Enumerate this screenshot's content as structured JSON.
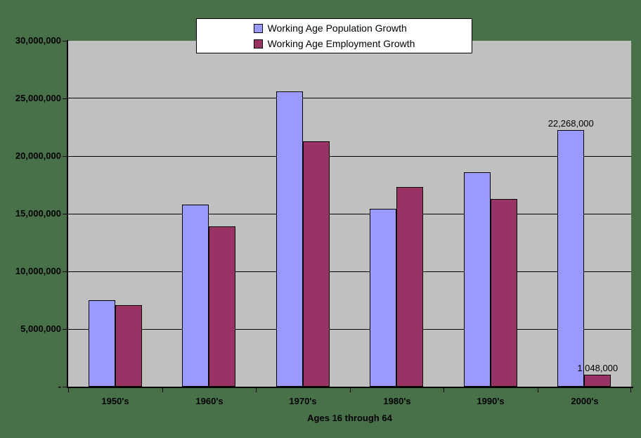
{
  "chart": {
    "background_color": "#48714A",
    "plot_background_color": "#C0C0C0",
    "axis_color": "#000000"
  },
  "legend": {
    "items": [
      {
        "label": "Working Age Population Growth",
        "color": "#9999FF"
      },
      {
        "label": "Working Age Employment Growth",
        "color": "#993366"
      }
    ]
  },
  "x_axis": {
    "title": "Ages 16 through 64",
    "categories": [
      "1950's",
      "1960's",
      "1970's",
      "1980's",
      "1990's",
      "2000's"
    ]
  },
  "y_axis": {
    "ticks": [
      {
        "label": "30,000,000",
        "value": 30000000
      },
      {
        "label": "25,000,000",
        "value": 25000000
      },
      {
        "label": "20,000,000",
        "value": 20000000
      },
      {
        "label": "15,000,000",
        "value": 15000000
      },
      {
        "label": "10,000,000",
        "value": 10000000
      },
      {
        "label": "5,000,000",
        "value": 5000000
      },
      {
        "label": "-",
        "value": 0
      }
    ]
  },
  "chart_data": {
    "type": "bar",
    "title": "",
    "xlabel": "Ages 16 through 64",
    "ylabel": "",
    "ylim": [
      0,
      30000000
    ],
    "grid": true,
    "legend_position": "top-center",
    "categories": [
      "1950's",
      "1960's",
      "1970's",
      "1980's",
      "1990's",
      "2000's"
    ],
    "series": [
      {
        "name": "Working Age Population Growth",
        "color": "#9999FF",
        "values": [
          7500000,
          15800000,
          25600000,
          15400000,
          18600000,
          22268000
        ],
        "data_labels": [
          null,
          null,
          null,
          null,
          null,
          "22,268,000"
        ]
      },
      {
        "name": "Working Age Employment Growth",
        "color": "#993366",
        "values": [
          7100000,
          13900000,
          21300000,
          17300000,
          16300000,
          1048000
        ],
        "data_labels": [
          null,
          null,
          null,
          null,
          null,
          "1,048,000"
        ]
      }
    ]
  }
}
